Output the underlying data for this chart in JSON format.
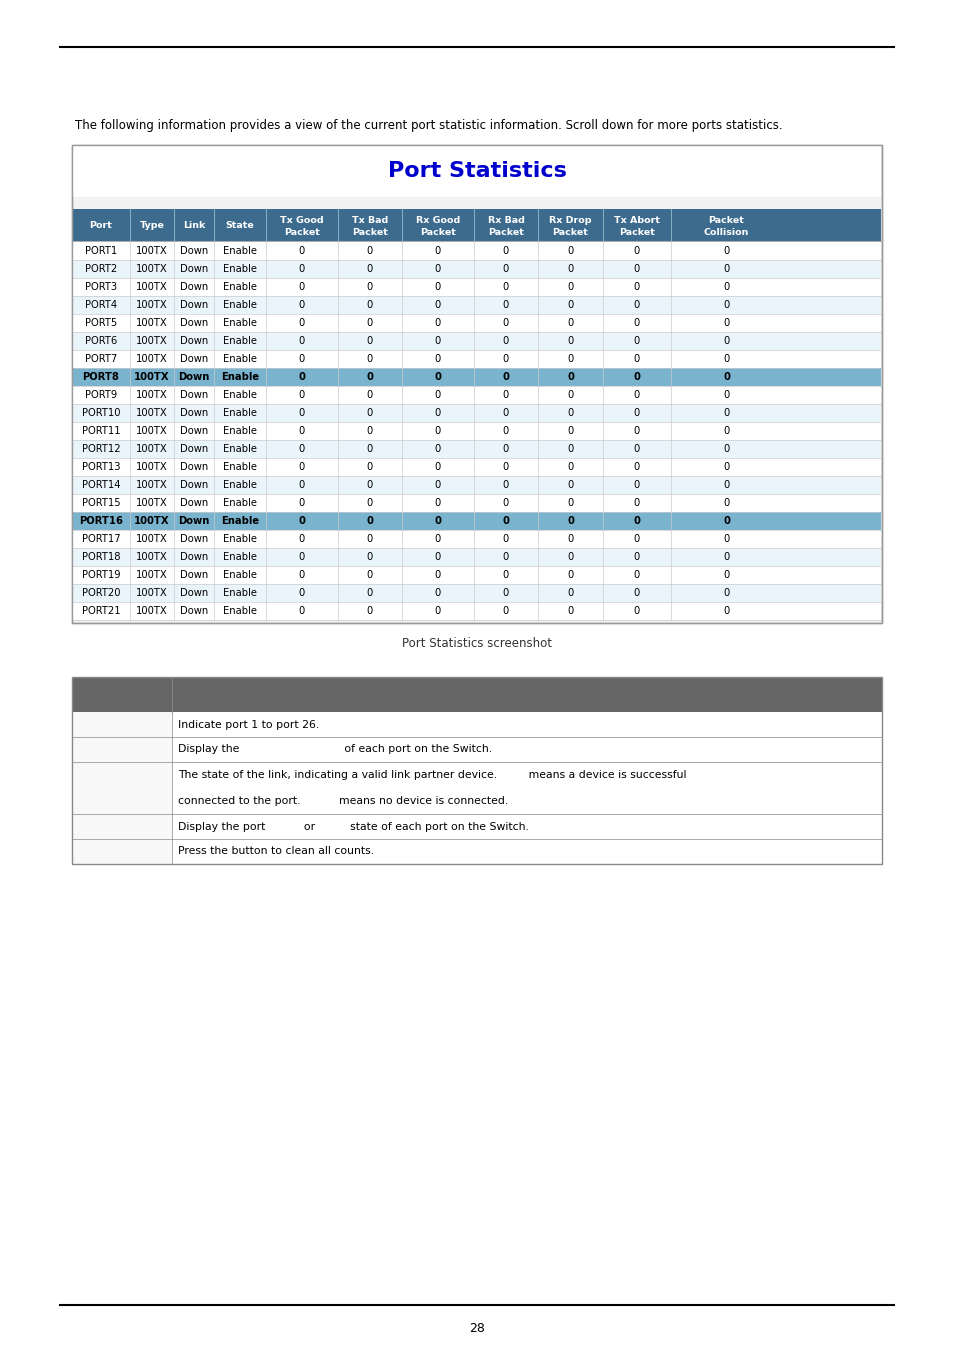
{
  "page_number": "28",
  "intro_text": "The following information provides a view of the current port statistic information. Scroll down for more ports statistics.",
  "table_title": "Port Statistics",
  "caption": "Port Statistics screenshot",
  "header_bg": "#3d6b8e",
  "header_text_color": "#ffffff",
  "highlight_row_bg": "#7ab3ce",
  "normal_row_bg_even": "#ffffff",
  "normal_row_bg_odd": "#eaf4fb",
  "col_headers_line1": [
    "Port",
    "Type",
    "Link",
    "State",
    "Tx Good",
    "Tx Bad",
    "Rx Good",
    "Rx Bad",
    "Rx Drop",
    "Tx Abort",
    "Packet"
  ],
  "col_headers_line2": [
    "",
    "",
    "",
    "",
    "Packet",
    "Packet",
    "Packet",
    "Packet",
    "Packet",
    "Packet",
    "Collision"
  ],
  "ports": [
    "PORT1",
    "PORT2",
    "PORT3",
    "PORT4",
    "PORT5",
    "PORT6",
    "PORT7",
    "PORT8",
    "PORT9",
    "PORT10",
    "PORT11",
    "PORT12",
    "PORT13",
    "PORT14",
    "PORT15",
    "PORT16",
    "PORT17",
    "PORT18",
    "PORT19",
    "PORT20",
    "PORT21"
  ],
  "highlighted_rows": [
    7,
    15
  ],
  "type_val": "100TX",
  "link_val": "Down",
  "state_val": "Enable",
  "info_table_header_bg": "#666666",
  "info_row_texts": [
    "Indicate port 1 to port 26.",
    "Display the                              of each port on the Switch.",
    "The state of the link, indicating a valid link partner device.         means a device is successful\n\nconnected to the port.           means no device is connected.",
    "Display the port           or          state of each port on the Switch.",
    "Press the button to clean all counts."
  ],
  "background_color": "#ffffff",
  "outer_border_color": "#999999",
  "cell_border_color": "#cccccc"
}
